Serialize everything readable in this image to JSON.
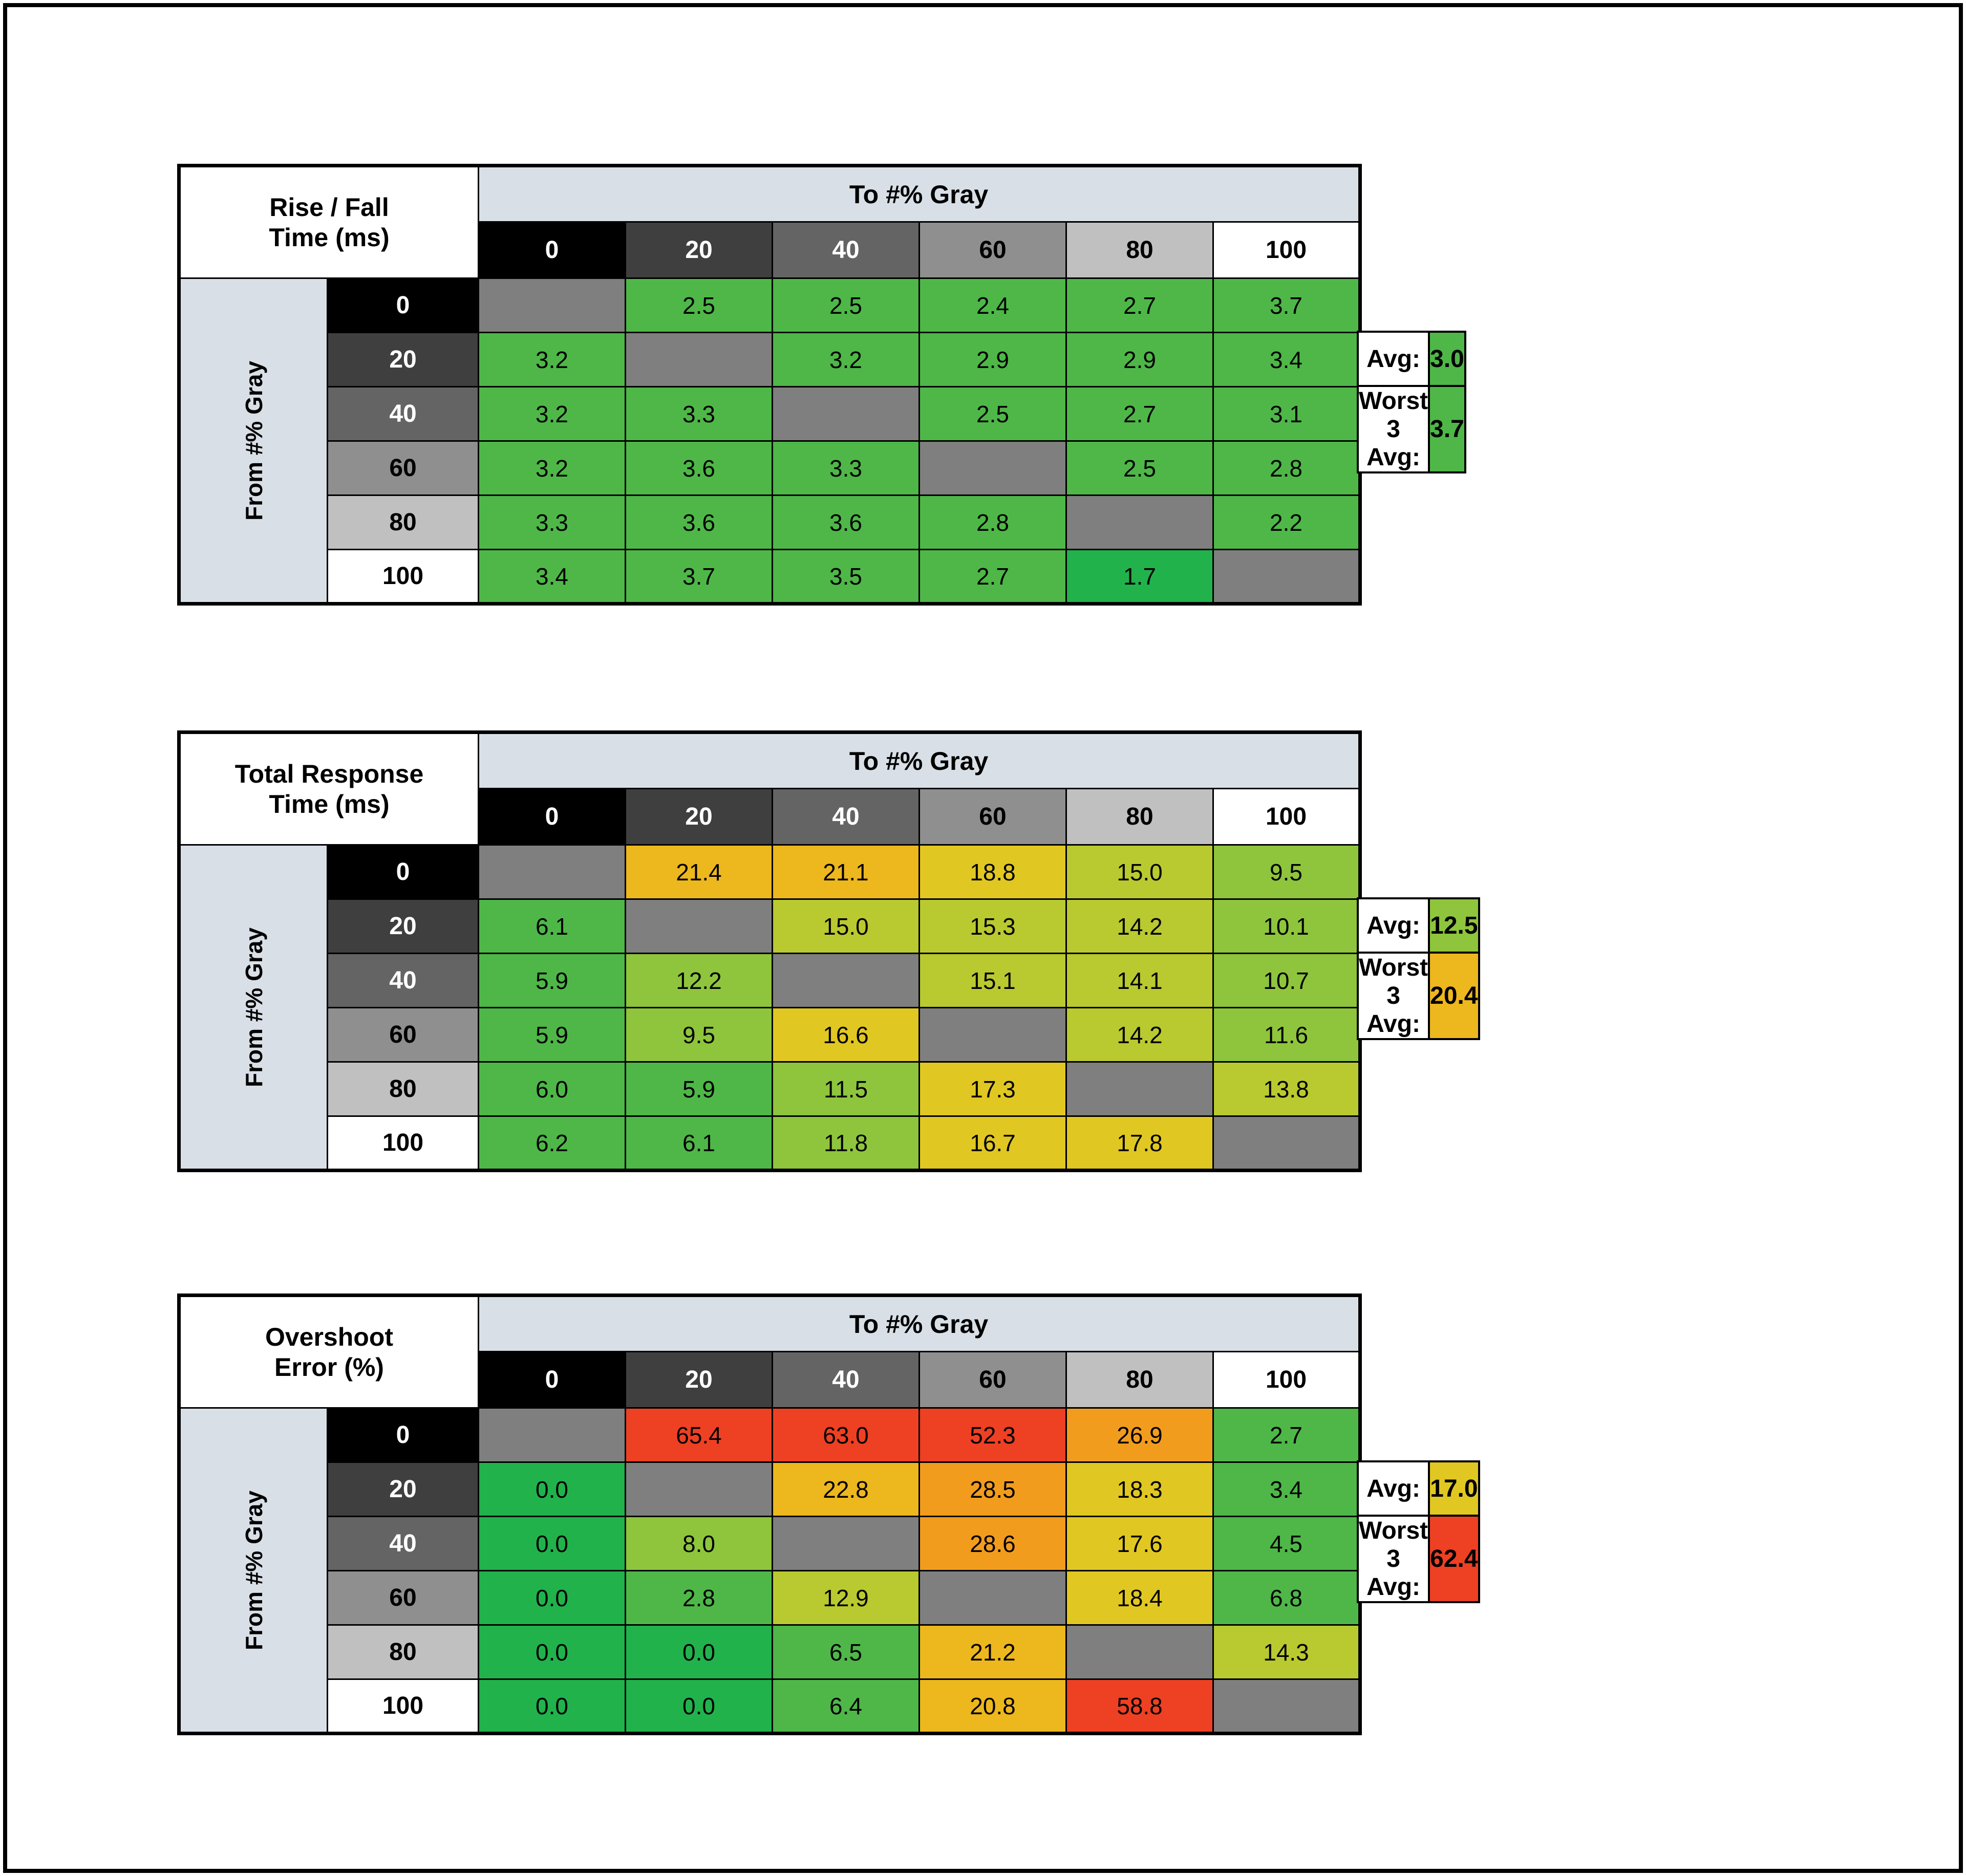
{
  "page": {
    "background": "#ffffff",
    "frame_color": "#000000"
  },
  "palette": {
    "header_blue": "#d9dfe7",
    "diag": "#7f7f7f",
    "green_bright": "#21b24c",
    "green": "#4eb748",
    "yg1": "#8ec53d",
    "yg2": "#b9c930",
    "yellow": "#e1c722",
    "gold": "#edb71e",
    "orange": "#f29c1e",
    "red": "#ee4023"
  },
  "gray_levels": {
    "labels": [
      "0",
      "20",
      "40",
      "60",
      "80",
      "100"
    ],
    "bg": [
      "#000000",
      "#3f3f3f",
      "#646464",
      "#8f8f8f",
      "#c0c0c0",
      "#ffffff"
    ],
    "text": [
      "#ffffff",
      "#ffffff",
      "#ffffff",
      "#000000",
      "#000000",
      "#000000"
    ]
  },
  "chart_data": [
    {
      "type": "heatmap",
      "title": [
        "Rise / Fall",
        "Time (ms)"
      ],
      "col_axis_label": "To #% Gray",
      "row_axis_label": "From #% Gray",
      "categories": [
        "0",
        "20",
        "40",
        "60",
        "80",
        "100"
      ],
      "cells": [
        [
          null,
          {
            "v": "2.5",
            "c": "green"
          },
          {
            "v": "2.5",
            "c": "green"
          },
          {
            "v": "2.4",
            "c": "green"
          },
          {
            "v": "2.7",
            "c": "green"
          },
          {
            "v": "3.7",
            "c": "green"
          }
        ],
        [
          {
            "v": "3.2",
            "c": "green"
          },
          null,
          {
            "v": "3.2",
            "c": "green"
          },
          {
            "v": "2.9",
            "c": "green"
          },
          {
            "v": "2.9",
            "c": "green"
          },
          {
            "v": "3.4",
            "c": "green"
          }
        ],
        [
          {
            "v": "3.2",
            "c": "green"
          },
          {
            "v": "3.3",
            "c": "green"
          },
          null,
          {
            "v": "2.5",
            "c": "green"
          },
          {
            "v": "2.7",
            "c": "green"
          },
          {
            "v": "3.1",
            "c": "green"
          }
        ],
        [
          {
            "v": "3.2",
            "c": "green"
          },
          {
            "v": "3.6",
            "c": "green"
          },
          {
            "v": "3.3",
            "c": "green"
          },
          null,
          {
            "v": "2.5",
            "c": "green"
          },
          {
            "v": "2.8",
            "c": "green"
          }
        ],
        [
          {
            "v": "3.3",
            "c": "green"
          },
          {
            "v": "3.6",
            "c": "green"
          },
          {
            "v": "3.6",
            "c": "green"
          },
          {
            "v": "2.8",
            "c": "green"
          },
          null,
          {
            "v": "2.2",
            "c": "green"
          }
        ],
        [
          {
            "v": "3.4",
            "c": "green"
          },
          {
            "v": "3.7",
            "c": "green"
          },
          {
            "v": "3.5",
            "c": "green"
          },
          {
            "v": "2.7",
            "c": "green"
          },
          {
            "v": "1.7",
            "c": "green_bright"
          },
          null
        ]
      ],
      "summary": {
        "avg_label": "Avg:",
        "avg_value": "3.0",
        "avg_color": "green",
        "worst_label": "Worst 3 Avg:",
        "worst_value": "3.7",
        "worst_color": "green"
      }
    },
    {
      "type": "heatmap",
      "title": [
        "Total Response",
        "Time (ms)"
      ],
      "col_axis_label": "To #% Gray",
      "row_axis_label": "From #% Gray",
      "categories": [
        "0",
        "20",
        "40",
        "60",
        "80",
        "100"
      ],
      "cells": [
        [
          null,
          {
            "v": "21.4",
            "c": "gold"
          },
          {
            "v": "21.1",
            "c": "gold"
          },
          {
            "v": "18.8",
            "c": "yellow"
          },
          {
            "v": "15.0",
            "c": "yg2"
          },
          {
            "v": "9.5",
            "c": "yg1"
          }
        ],
        [
          {
            "v": "6.1",
            "c": "green"
          },
          null,
          {
            "v": "15.0",
            "c": "yg2"
          },
          {
            "v": "15.3",
            "c": "yg2"
          },
          {
            "v": "14.2",
            "c": "yg2"
          },
          {
            "v": "10.1",
            "c": "yg1"
          }
        ],
        [
          {
            "v": "5.9",
            "c": "green"
          },
          {
            "v": "12.2",
            "c": "yg1"
          },
          null,
          {
            "v": "15.1",
            "c": "yg2"
          },
          {
            "v": "14.1",
            "c": "yg2"
          },
          {
            "v": "10.7",
            "c": "yg1"
          }
        ],
        [
          {
            "v": "5.9",
            "c": "green"
          },
          {
            "v": "9.5",
            "c": "yg1"
          },
          {
            "v": "16.6",
            "c": "yellow"
          },
          null,
          {
            "v": "14.2",
            "c": "yg2"
          },
          {
            "v": "11.6",
            "c": "yg1"
          }
        ],
        [
          {
            "v": "6.0",
            "c": "green"
          },
          {
            "v": "5.9",
            "c": "green"
          },
          {
            "v": "11.5",
            "c": "yg1"
          },
          {
            "v": "17.3",
            "c": "yellow"
          },
          null,
          {
            "v": "13.8",
            "c": "yg2"
          }
        ],
        [
          {
            "v": "6.2",
            "c": "green"
          },
          {
            "v": "6.1",
            "c": "green"
          },
          {
            "v": "11.8",
            "c": "yg1"
          },
          {
            "v": "16.7",
            "c": "yellow"
          },
          {
            "v": "17.8",
            "c": "yellow"
          },
          null
        ]
      ],
      "summary": {
        "avg_label": "Avg:",
        "avg_value": "12.5",
        "avg_color": "yg1",
        "worst_label": "Worst 3 Avg:",
        "worst_value": "20.4",
        "worst_color": "gold"
      }
    },
    {
      "type": "heatmap",
      "title": [
        "Overshoot",
        "Error (%)"
      ],
      "col_axis_label": "To #% Gray",
      "row_axis_label": "From #% Gray",
      "categories": [
        "0",
        "20",
        "40",
        "60",
        "80",
        "100"
      ],
      "cells": [
        [
          null,
          {
            "v": "65.4",
            "c": "red"
          },
          {
            "v": "63.0",
            "c": "red"
          },
          {
            "v": "52.3",
            "c": "red"
          },
          {
            "v": "26.9",
            "c": "orange"
          },
          {
            "v": "2.7",
            "c": "green"
          }
        ],
        [
          {
            "v": "0.0",
            "c": "green_bright"
          },
          null,
          {
            "v": "22.8",
            "c": "gold"
          },
          {
            "v": "28.5",
            "c": "orange"
          },
          {
            "v": "18.3",
            "c": "yellow"
          },
          {
            "v": "3.4",
            "c": "green"
          }
        ],
        [
          {
            "v": "0.0",
            "c": "green_bright"
          },
          {
            "v": "8.0",
            "c": "yg1"
          },
          null,
          {
            "v": "28.6",
            "c": "orange"
          },
          {
            "v": "17.6",
            "c": "yellow"
          },
          {
            "v": "4.5",
            "c": "green"
          }
        ],
        [
          {
            "v": "0.0",
            "c": "green_bright"
          },
          {
            "v": "2.8",
            "c": "green"
          },
          {
            "v": "12.9",
            "c": "yg2"
          },
          null,
          {
            "v": "18.4",
            "c": "yellow"
          },
          {
            "v": "6.8",
            "c": "green"
          }
        ],
        [
          {
            "v": "0.0",
            "c": "green_bright"
          },
          {
            "v": "0.0",
            "c": "green_bright"
          },
          {
            "v": "6.5",
            "c": "green"
          },
          {
            "v": "21.2",
            "c": "gold"
          },
          null,
          {
            "v": "14.3",
            "c": "yg2"
          }
        ],
        [
          {
            "v": "0.0",
            "c": "green_bright"
          },
          {
            "v": "0.0",
            "c": "green_bright"
          },
          {
            "v": "6.4",
            "c": "green"
          },
          {
            "v": "20.8",
            "c": "gold"
          },
          {
            "v": "58.8",
            "c": "red"
          },
          null
        ]
      ],
      "summary": {
        "avg_label": "Avg:",
        "avg_value": "17.0",
        "avg_color": "yellow",
        "worst_label": "Worst 3 Avg:",
        "worst_value": "62.4",
        "worst_color": "red"
      }
    }
  ]
}
